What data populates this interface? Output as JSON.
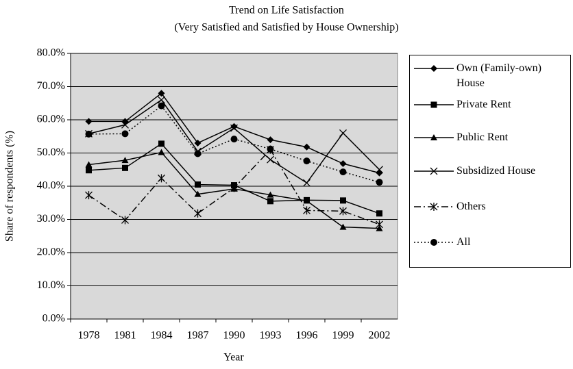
{
  "chart_data": {
    "type": "line",
    "title": "Trend on Life Satisfaction",
    "subtitle": "(Very Satisfied and Satisfied by House Ownership)",
    "x_label": "Year",
    "y_label": "Share of respondents (%)",
    "categories": [
      "1978",
      "1981",
      "1984",
      "1987",
      "1990",
      "1993",
      "1996",
      "1999",
      "2002"
    ],
    "ylim": [
      0,
      80
    ],
    "yticks": [
      {
        "value": 0,
        "label": "0.0%"
      },
      {
        "value": 10,
        "label": "10.0%"
      },
      {
        "value": 20,
        "label": "20.0%"
      },
      {
        "value": 30,
        "label": "30.0%"
      },
      {
        "value": 40,
        "label": "40.0%"
      },
      {
        "value": 50,
        "label": "50.0%"
      },
      {
        "value": 60,
        "label": "60.0%"
      },
      {
        "value": 70,
        "label": "70.0%"
      },
      {
        "value": 80,
        "label": "80.0%"
      }
    ],
    "grid": true,
    "background": "#d9d9d9",
    "legend": "right",
    "series": [
      {
        "name": "Own (Family-own) House",
        "color": "#000000",
        "marker": "diamond",
        "line_style": "solid",
        "values": [
          59.5,
          59.5,
          68,
          53,
          58,
          54,
          51.8,
          46.8,
          44
        ]
      },
      {
        "name": "Private Rent",
        "color": "#000000",
        "marker": "square",
        "line_style": "solid",
        "values": [
          44.8,
          45.5,
          52.8,
          40.5,
          40.3,
          35.5,
          35.8,
          35.7,
          31.8
        ]
      },
      {
        "name": "Public Rent",
        "color": "#000000",
        "marker": "triangle",
        "line_style": "solid",
        "values": [
          46.5,
          47.8,
          50.2,
          37.6,
          39.2,
          37.4,
          35.6,
          27.7,
          27.3
        ]
      },
      {
        "name": "Subsidized House",
        "color": "#000000",
        "marker": "x",
        "line_style": "solid",
        "values": [
          55.8,
          58.5,
          66,
          50.5,
          57.5,
          48,
          41,
          56,
          45
        ]
      },
      {
        "name": "Others",
        "color": "#000000",
        "marker": "asterisk",
        "line_style": "dashdot",
        "values": [
          37.3,
          29.8,
          42.4,
          31.8,
          39.5,
          51,
          32.7,
          32.5,
          28.5
        ]
      },
      {
        "name": "All",
        "color": "#000000",
        "marker": "circle",
        "line_style": "dotted",
        "values": [
          55.7,
          55.8,
          64.2,
          49.8,
          54.2,
          51.2,
          47.6,
          44.3,
          41.2
        ]
      }
    ]
  }
}
